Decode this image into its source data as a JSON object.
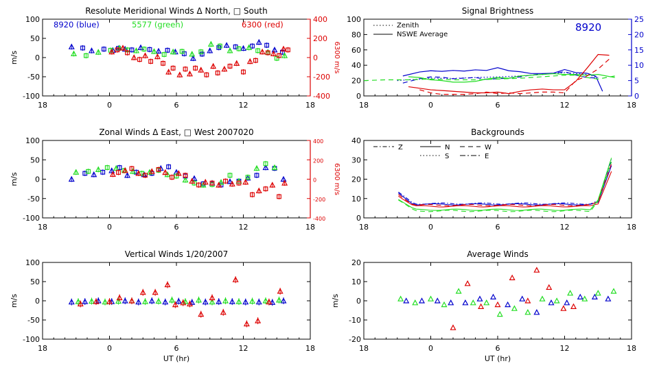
{
  "colors": {
    "blue": "#0000cc",
    "green": "#22dd22",
    "red": "#dd0000",
    "axis": "#000000"
  },
  "chart_data": [
    {
      "id": "meridional",
      "type": "scatter",
      "title": "Resolute Meridional Winds Δ North, □ South",
      "ylabel": "m/s",
      "xlabel": "",
      "ylabel_right": "6300 m/s",
      "xlim": [
        -6,
        18
      ],
      "ylim": [
        -100,
        100
      ],
      "ylim_right": [
        -400,
        400
      ],
      "xticks": [
        "18",
        "0",
        "6",
        "12",
        "18"
      ],
      "yticks": [
        "100",
        "50",
        "0",
        "-50",
        "-100"
      ],
      "yticks_right": [
        "400",
        "200",
        "0",
        "-200",
        "-400"
      ],
      "annotations": [
        "8920 (blue)",
        "5577 (green)",
        "6300 (red)"
      ],
      "series": [
        {
          "color": "blue",
          "axis": "left",
          "x": [
            -3.4,
            -2.4,
            -1.6,
            -0.5,
            0.3,
            0.8,
            1.4,
            2.0,
            2.8,
            3.6,
            4.4,
            5.2,
            5.9,
            6.7,
            7.5,
            8.3,
            9.0,
            9.8,
            10.5,
            11.3,
            12.0,
            12.8,
            13.4,
            14.1,
            14.8,
            15.5
          ],
          "y": [
            28,
            25,
            18,
            22,
            19,
            24,
            22,
            20,
            26,
            21,
            17,
            19,
            15,
            10,
            -2,
            9,
            18,
            26,
            32,
            28,
            24,
            30,
            40,
            32,
            20,
            14
          ]
        },
        {
          "color": "green",
          "axis": "left",
          "x": [
            -3.2,
            -2.1,
            -1.0,
            0.1,
            0.9,
            1.6,
            2.4,
            3.1,
            4.0,
            4.9,
            5.7,
            6.5,
            7.4,
            8.2,
            9.1,
            9.9,
            10.8,
            11.6,
            12.5,
            13.3,
            14.2,
            15.0,
            15.7
          ],
          "y": [
            10,
            5,
            14,
            19,
            25,
            20,
            18,
            22,
            16,
            8,
            15,
            16,
            9,
            15,
            35,
            30,
            18,
            23,
            26,
            18,
            14,
            -2,
            5
          ]
        },
        {
          "color": "red",
          "axis": "right",
          "x": [
            0.2,
            0.7,
            1.2,
            1.6,
            2.2,
            2.7,
            3.2,
            3.7,
            4.3,
            4.8,
            5.3,
            5.7,
            6.3,
            6.8,
            7.2,
            7.7,
            8.2,
            8.7,
            9.3,
            9.7,
            10.3,
            10.8,
            11.4,
            12.0,
            12.6,
            13.1,
            13.7,
            14.2,
            14.7,
            15.2,
            15.6,
            16.0
          ],
          "y": [
            60,
            80,
            100,
            50,
            0,
            -20,
            20,
            -40,
            10,
            -60,
            -150,
            -110,
            -180,
            -120,
            -170,
            -110,
            -130,
            -180,
            -90,
            -160,
            -120,
            -90,
            -60,
            -150,
            -40,
            -30,
            60,
            50,
            40,
            20,
            90,
            80
          ]
        }
      ]
    },
    {
      "id": "brightness",
      "type": "line",
      "title": "Signal Brightness",
      "xlabel": "",
      "ylabel": "",
      "xlim": [
        -6,
        18
      ],
      "ylim": [
        0,
        100
      ],
      "ylim_right": [
        0,
        25
      ],
      "xticks": [
        "18",
        "0",
        "6",
        "12",
        "18"
      ],
      "yticks": [
        "100",
        "80",
        "60",
        "40",
        "20",
        "0"
      ],
      "yticks_right": [
        "25",
        "20",
        "15",
        "10",
        "5",
        "0"
      ],
      "legend": [
        "Zenith",
        "NSWE Average"
      ],
      "annotation": "8920",
      "series": [
        {
          "color": "blue",
          "style": "solid",
          "axis": "right",
          "x": [
            -2.5,
            -1,
            0,
            1,
            2,
            3,
            4,
            5,
            6,
            7,
            8,
            9,
            10,
            11,
            12,
            13,
            14,
            14.8,
            15.4
          ],
          "y": [
            6.5,
            7.8,
            8.2,
            8.0,
            8.3,
            8.1,
            8.5,
            8.3,
            9.2,
            8.2,
            7.9,
            7.3,
            7.3,
            7.4,
            8.6,
            7.6,
            7.4,
            6.4,
            1.5
          ]
        },
        {
          "color": "blue",
          "style": "dashed",
          "axis": "right",
          "x": [
            -2.5,
            -1,
            0,
            1,
            2,
            3,
            4,
            5,
            6,
            7,
            8,
            9,
            10,
            11,
            12,
            13,
            14,
            15
          ],
          "y": [
            4.2,
            5.6,
            6.2,
            6.1,
            5.6,
            5.8,
            6.0,
            5.4,
            5.6,
            5.8,
            6.2,
            6.8,
            7.2,
            7.4,
            7.9,
            6.8,
            6.0,
            5.8
          ]
        },
        {
          "color": "blue",
          "style": "dotted",
          "axis": "right",
          "x": [
            -3,
            -1,
            0,
            2,
            4,
            6,
            8,
            10,
            12,
            14,
            15
          ],
          "y": [
            5.0,
            5.5,
            5.8,
            5.7,
            6.0,
            6.2,
            6.5,
            7.0,
            7.6,
            7.0,
            6.0
          ]
        },
        {
          "color": "green",
          "style": "solid",
          "axis": "left",
          "x": [
            -2,
            -1,
            0,
            1,
            2,
            3,
            4,
            5,
            6,
            7,
            8,
            9,
            10,
            11,
            12,
            13,
            14,
            15,
            16.5
          ],
          "y": [
            25,
            24,
            21,
            20,
            18,
            18,
            19,
            22,
            24,
            23,
            26,
            27,
            28,
            29,
            28,
            28,
            27,
            28,
            24
          ]
        },
        {
          "color": "green",
          "style": "dashed",
          "axis": "left",
          "x": [
            -6,
            -4,
            -2,
            0,
            2,
            4,
            6,
            8,
            10,
            12,
            13,
            14,
            15,
            16.5
          ],
          "y": [
            20,
            21,
            21,
            22,
            21,
            21,
            22,
            23,
            25,
            27,
            27,
            24,
            22,
            26
          ]
        },
        {
          "color": "red",
          "style": "solid",
          "axis": "left",
          "x": [
            -2,
            -1,
            0,
            1,
            2,
            3,
            4,
            5,
            6,
            7,
            8,
            9,
            10,
            11,
            12,
            13,
            14,
            15,
            16
          ],
          "y": [
            12,
            10,
            8,
            7,
            6,
            5,
            4,
            4,
            5,
            3,
            6,
            8,
            9,
            8,
            8,
            19,
            36,
            54,
            53
          ]
        },
        {
          "color": "red",
          "style": "dashed",
          "axis": "left",
          "x": [
            -1,
            0,
            1,
            2,
            3,
            4,
            5,
            6,
            7,
            8,
            9,
            10,
            11,
            12,
            13,
            14,
            15,
            16
          ],
          "y": [
            8,
            4,
            2,
            2,
            2,
            3,
            5,
            3,
            4,
            3,
            4,
            5,
            5,
            4,
            20,
            26,
            35,
            48
          ]
        }
      ]
    },
    {
      "id": "zonal",
      "type": "scatter",
      "title": "Zonal Winds Δ East, □ West 2007020",
      "ylabel": "m/s",
      "xlabel": "",
      "ylabel_right": "6300 m/s",
      "xlim": [
        -6,
        18
      ],
      "ylim": [
        -100,
        100
      ],
      "ylim_right": [
        -400,
        400
      ],
      "xticks": [
        "18",
        "0",
        "6",
        "12",
        "18"
      ],
      "yticks": [
        "100",
        "50",
        "0",
        "-50",
        "-100"
      ],
      "yticks_right": [
        "400",
        "200",
        "0",
        "-200",
        "-400"
      ],
      "series": [
        {
          "color": "blue",
          "axis": "left",
          "x": [
            -3.4,
            -2.2,
            -1.4,
            -0.6,
            0.2,
            0.9,
            1.6,
            2.4,
            3.1,
            3.8,
            4.6,
            5.3,
            6.0,
            6.8,
            7.6,
            8.4,
            9.2,
            10.0,
            10.8,
            11.6,
            12.4,
            13.2,
            14.0,
            14.8,
            15.6
          ],
          "y": [
            0,
            15,
            12,
            18,
            22,
            30,
            10,
            18,
            12,
            15,
            28,
            32,
            18,
            8,
            2,
            -12,
            -10,
            -15,
            -6,
            -5,
            3,
            10,
            30,
            28,
            0
          ]
        },
        {
          "color": "green",
          "axis": "left",
          "x": [
            -3.0,
            -1.9,
            -1.0,
            -0.2,
            0.6,
            1.3,
            2.1,
            2.9,
            3.6,
            4.4,
            5.2,
            6.0,
            6.8,
            7.6,
            8.4,
            9.2,
            10.0,
            10.8,
            11.6,
            12.4,
            13.2,
            14.0,
            14.8
          ],
          "y": [
            18,
            20,
            25,
            30,
            28,
            22,
            20,
            15,
            18,
            23,
            12,
            8,
            -2,
            -10,
            -15,
            -14,
            -8,
            10,
            -5,
            5,
            28,
            40,
            30
          ]
        },
        {
          "color": "red",
          "axis": "right",
          "x": [
            0.3,
            0.8,
            1.4,
            2.0,
            2.6,
            3.2,
            3.8,
            4.4,
            5.0,
            5.6,
            6.2,
            6.8,
            7.4,
            8.0,
            8.6,
            9.2,
            9.8,
            10.4,
            11.0,
            11.6,
            12.2,
            12.8,
            13.4,
            14.0,
            14.6,
            15.2,
            15.7
          ],
          "y": [
            50,
            70,
            90,
            110,
            60,
            40,
            80,
            100,
            70,
            20,
            60,
            40,
            -20,
            -60,
            -30,
            -40,
            -60,
            -20,
            -50,
            -40,
            -30,
            -160,
            -120,
            -100,
            -60,
            -180,
            -40
          ]
        }
      ]
    },
    {
      "id": "backgrounds",
      "type": "line",
      "title": "Backgrounds",
      "xlabel": "",
      "ylabel": "",
      "xlim": [
        -6,
        18
      ],
      "ylim": [
        0,
        40
      ],
      "xticks": [
        "18",
        "0",
        "6",
        "12",
        "18"
      ],
      "yticks": [
        "40",
        "30",
        "20",
        "10",
        "0"
      ],
      "legend": [
        "Z",
        "N",
        "W",
        "S",
        "E"
      ]
    },
    {
      "id": "vertical",
      "type": "scatter",
      "title": "Vertical Winds 1/20/2007",
      "ylabel": "m/s",
      "xlabel": "UT (hr)",
      "xlim": [
        -6,
        18
      ],
      "ylim": [
        -100,
        100
      ],
      "xticks": [
        "18",
        "0",
        "6",
        "12",
        "18"
      ],
      "yticks": [
        "100",
        "50",
        "0",
        "-50",
        "-100"
      ],
      "series": [
        {
          "color": "blue",
          "axis": "left",
          "x": [
            -3.4,
            -2.2,
            -1.0,
            0.2,
            1.4,
            2.6,
            3.8,
            5.0,
            6.2,
            7.4,
            8.6,
            9.8,
            11.0,
            12.2,
            13.4,
            14.6,
            15.6
          ],
          "y": [
            -3,
            -2,
            0,
            -2,
            0,
            -3,
            0,
            -3,
            -1,
            -4,
            -3,
            -2,
            -2,
            -3,
            -3,
            -4,
            0
          ]
        },
        {
          "color": "green",
          "axis": "left",
          "x": [
            -2.8,
            -1.6,
            -0.4,
            0.8,
            2.0,
            3.2,
            4.4,
            5.6,
            6.8,
            8.0,
            9.2,
            10.4,
            11.6,
            12.8,
            14.0,
            15.2
          ],
          "y": [
            -2,
            -1,
            -3,
            -1,
            0,
            -2,
            -1,
            2,
            -2,
            2,
            -3,
            0,
            -2,
            -1,
            0,
            2
          ]
        },
        {
          "color": "red",
          "axis": "left",
          "x": [
            -2.6,
            -1.2,
            0.0,
            0.9,
            2.0,
            3.0,
            4.1,
            5.2,
            5.9,
            6.6,
            7.2,
            8.2,
            9.2,
            10.2,
            11.3,
            12.3,
            13.3,
            14.3,
            15.3
          ],
          "y": [
            -8,
            -2,
            -2,
            8,
            0,
            22,
            22,
            42,
            -10,
            -5,
            -8,
            -35,
            8,
            -30,
            55,
            -60,
            -52,
            -3,
            25
          ]
        }
      ]
    },
    {
      "id": "average",
      "type": "scatter",
      "title": "Average Winds",
      "ylabel": "m/s",
      "xlabel": "UT (hr)",
      "xlim": [
        -6,
        18
      ],
      "ylim": [
        -20,
        20
      ],
      "xticks": [
        "18",
        "0",
        "6",
        "12",
        "18"
      ],
      "yticks": [
        "20",
        "10",
        "0",
        "-10",
        "-20"
      ],
      "series": [
        {
          "color": "blue",
          "axis": "left",
          "x": [
            -2.2,
            -0.8,
            0.6,
            1.8,
            3.1,
            4.4,
            5.6,
            6.9,
            8.2,
            9.5,
            10.8,
            12.2,
            13.4,
            14.7,
            15.9
          ],
          "y": [
            0,
            0,
            0,
            -1,
            -1,
            1,
            2,
            -2,
            1,
            -6,
            -1,
            -1,
            2,
            2,
            1
          ]
        },
        {
          "color": "green",
          "axis": "left",
          "x": [
            -2.7,
            -1.4,
            0.0,
            1.2,
            2.5,
            3.8,
            5.0,
            6.2,
            7.5,
            8.7,
            10.0,
            11.3,
            12.5,
            13.8,
            15.0,
            16.4
          ],
          "y": [
            1,
            -1,
            1,
            -2,
            5,
            -1,
            -1,
            -7,
            -4,
            -6,
            1,
            0,
            4,
            1,
            4,
            5
          ]
        },
        {
          "color": "red",
          "axis": "left",
          "x": [
            2.0,
            3.3,
            4.5,
            6.0,
            7.3,
            8.7,
            9.5,
            10.6,
            11.9,
            12.8
          ],
          "y": [
            -14,
            9,
            -3,
            -2,
            12,
            0,
            16,
            7,
            -4,
            -3
          ]
        }
      ]
    }
  ]
}
